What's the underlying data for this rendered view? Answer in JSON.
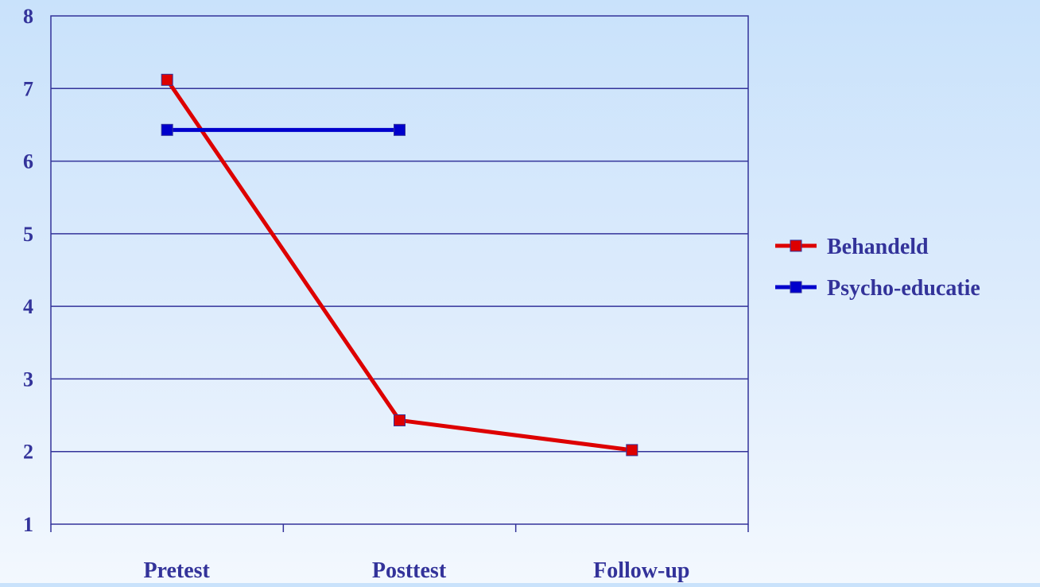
{
  "chart_data": {
    "type": "line",
    "title": "",
    "xlabel": "",
    "ylabel": "",
    "categories": [
      "Pretest",
      "Posttest",
      "Follow-up"
    ],
    "ylim": [
      1,
      8
    ],
    "yticks": [
      1,
      2,
      3,
      4,
      5,
      6,
      7,
      8
    ],
    "grid": true,
    "legend_position": "right",
    "series": [
      {
        "name": "Behandeld",
        "color": "#dd0000",
        "values": [
          7.12,
          2.43,
          2.02
        ]
      },
      {
        "name": "Psycho-educatie",
        "color": "#0000cc",
        "values": [
          6.43,
          6.43,
          null
        ]
      }
    ],
    "colors": {
      "text": "#33339a",
      "grid": "#33339a",
      "marker_border": "#33339a"
    }
  }
}
